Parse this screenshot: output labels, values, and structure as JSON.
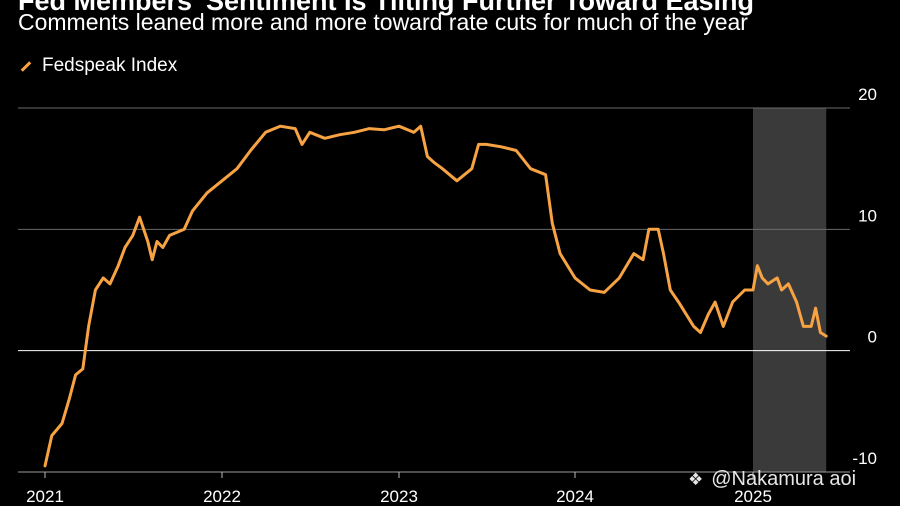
{
  "title": "Fed Members' Sentiment Is Tilting Further Toward Easing",
  "subtitle": "Comments leaned more and more toward rate cuts for much of the year",
  "legend": {
    "label": "Fedspeak Index"
  },
  "watermark": {
    "text": "@Nakamura aoi",
    "logo_icon": "diamond-logo"
  },
  "colors": {
    "line": "#f7a243",
    "shade": "#3a3a3a",
    "grid": "#6a6a6a",
    "zero": "#ffffff"
  },
  "chart_data": {
    "type": "line",
    "x_ticks": [
      "2021",
      "2022",
      "2023",
      "2024",
      "2025"
    ],
    "y_ticks": [
      -10,
      0,
      10,
      20
    ],
    "ylim": [
      -10,
      20
    ],
    "xlim": [
      "2021-01-01",
      "2025-07-01"
    ],
    "shaded_region": [
      "2025-01-01",
      "2025-06-01"
    ],
    "series": [
      {
        "name": "Fedspeak Index",
        "points": [
          [
            "2021-01-01",
            -9.5
          ],
          [
            "2021-01-15",
            -7
          ],
          [
            "2021-02-05",
            -6
          ],
          [
            "2021-02-20",
            -4
          ],
          [
            "2021-03-05",
            -2
          ],
          [
            "2021-03-20",
            -1.5
          ],
          [
            "2021-04-01",
            2
          ],
          [
            "2021-04-15",
            5
          ],
          [
            "2021-05-01",
            6
          ],
          [
            "2021-05-15",
            5.5
          ],
          [
            "2021-06-01",
            7
          ],
          [
            "2021-06-15",
            8.5
          ],
          [
            "2021-07-01",
            9.5
          ],
          [
            "2021-07-15",
            11
          ],
          [
            "2021-08-01",
            9
          ],
          [
            "2021-08-10",
            7.5
          ],
          [
            "2021-08-20",
            9
          ],
          [
            "2021-09-01",
            8.5
          ],
          [
            "2021-09-15",
            9.5
          ],
          [
            "2021-10-15",
            10
          ],
          [
            "2021-11-01",
            11.5
          ],
          [
            "2021-12-01",
            13
          ],
          [
            "2022-01-01",
            14
          ],
          [
            "2022-02-01",
            15
          ],
          [
            "2022-03-01",
            16.5
          ],
          [
            "2022-04-01",
            18
          ],
          [
            "2022-05-01",
            18.5
          ],
          [
            "2022-06-01",
            18.3
          ],
          [
            "2022-06-15",
            17
          ],
          [
            "2022-07-01",
            18
          ],
          [
            "2022-08-01",
            17.5
          ],
          [
            "2022-09-01",
            17.8
          ],
          [
            "2022-10-01",
            18
          ],
          [
            "2022-11-01",
            18.3
          ],
          [
            "2022-12-01",
            18.2
          ],
          [
            "2023-01-01",
            18.5
          ],
          [
            "2023-02-01",
            18
          ],
          [
            "2023-02-15",
            18.5
          ],
          [
            "2023-03-01",
            16
          ],
          [
            "2023-03-15",
            15.5
          ],
          [
            "2023-04-01",
            15
          ],
          [
            "2023-05-01",
            14
          ],
          [
            "2023-06-01",
            15
          ],
          [
            "2023-06-15",
            17
          ],
          [
            "2023-07-01",
            17
          ],
          [
            "2023-08-01",
            16.8
          ],
          [
            "2023-09-01",
            16.5
          ],
          [
            "2023-10-01",
            15
          ],
          [
            "2023-11-01",
            14.5
          ],
          [
            "2023-11-15",
            10.5
          ],
          [
            "2023-12-01",
            8
          ],
          [
            "2024-01-01",
            6
          ],
          [
            "2024-02-01",
            5
          ],
          [
            "2024-03-01",
            4.8
          ],
          [
            "2024-04-01",
            6
          ],
          [
            "2024-05-01",
            8
          ],
          [
            "2024-05-20",
            7.5
          ],
          [
            "2024-06-01",
            10
          ],
          [
            "2024-06-20",
            10
          ],
          [
            "2024-07-01",
            8
          ],
          [
            "2024-07-15",
            5
          ],
          [
            "2024-08-01",
            4
          ],
          [
            "2024-09-01",
            2
          ],
          [
            "2024-09-15",
            1.5
          ],
          [
            "2024-10-01",
            3
          ],
          [
            "2024-10-15",
            4
          ],
          [
            "2024-11-01",
            2
          ],
          [
            "2024-11-20",
            4
          ],
          [
            "2024-12-15",
            5
          ],
          [
            "2025-01-01",
            5
          ],
          [
            "2025-01-10",
            7
          ],
          [
            "2025-01-20",
            6
          ],
          [
            "2025-02-01",
            5.5
          ],
          [
            "2025-02-20",
            6
          ],
          [
            "2025-03-01",
            5
          ],
          [
            "2025-03-15",
            5.5
          ],
          [
            "2025-04-01",
            4
          ],
          [
            "2025-04-15",
            2
          ],
          [
            "2025-05-01",
            2
          ],
          [
            "2025-05-10",
            3.5
          ],
          [
            "2025-05-20",
            1.5
          ],
          [
            "2025-06-01",
            1.2
          ]
        ]
      }
    ]
  }
}
